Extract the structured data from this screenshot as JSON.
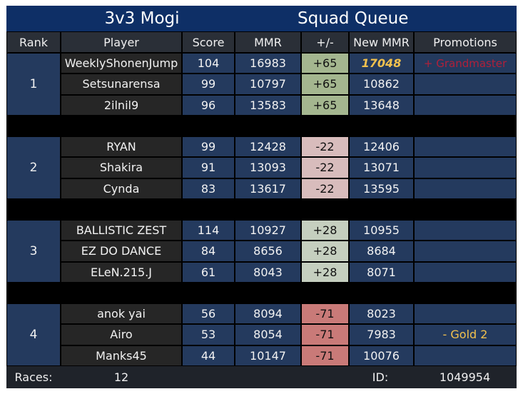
{
  "header": {
    "title_left": "3v3 Mogi",
    "title_right": "Squad Queue"
  },
  "columns": [
    "Rank",
    "Player",
    "Score",
    "MMR",
    "+/-",
    "New MMR",
    "Promotions"
  ],
  "colors": {
    "gain": "#a4b68f",
    "gain_light": "#c5cfbf",
    "loss_light": "#d8bcbc",
    "loss": "#c97a78"
  },
  "teams": [
    {
      "rank": "1",
      "delta_color": "#a4b68f",
      "players": [
        {
          "name": "WeeklyShonenJump",
          "score": "104",
          "mmr": "16983",
          "delta": "+65",
          "new_mmr": "17048",
          "promotion": "+ Grandmaster"
        },
        {
          "name": "Setsunarensa",
          "score": "99",
          "mmr": "10797",
          "delta": "+65",
          "new_mmr": "10862",
          "promotion": ""
        },
        {
          "name": "2ilnil9",
          "score": "96",
          "mmr": "13583",
          "delta": "+65",
          "new_mmr": "13648",
          "promotion": ""
        }
      ]
    },
    {
      "rank": "2",
      "delta_color": "#d8bcbc",
      "players": [
        {
          "name": "RYAN",
          "score": "99",
          "mmr": "12428",
          "delta": "-22",
          "new_mmr": "12406",
          "promotion": ""
        },
        {
          "name": "Shakira",
          "score": "91",
          "mmr": "13093",
          "delta": "-22",
          "new_mmr": "13071",
          "promotion": ""
        },
        {
          "name": "Cynda",
          "score": "83",
          "mmr": "13617",
          "delta": "-22",
          "new_mmr": "13595",
          "promotion": ""
        }
      ]
    },
    {
      "rank": "3",
      "delta_color": "#c5cfbf",
      "players": [
        {
          "name": "BALLISTIC ZEST",
          "score": "114",
          "mmr": "10927",
          "delta": "+28",
          "new_mmr": "10955",
          "promotion": ""
        },
        {
          "name": "EZ DO DANCE",
          "score": "84",
          "mmr": "8656",
          "delta": "+28",
          "new_mmr": "8684",
          "promotion": ""
        },
        {
          "name": "ELeN.215.J",
          "score": "61",
          "mmr": "8043",
          "delta": "+28",
          "new_mmr": "8071",
          "promotion": ""
        }
      ]
    },
    {
      "rank": "4",
      "delta_color": "#c97a78",
      "players": [
        {
          "name": "anok yai",
          "score": "56",
          "mmr": "8094",
          "delta": "-71",
          "new_mmr": "8023",
          "promotion": ""
        },
        {
          "name": "Airo",
          "score": "53",
          "mmr": "8054",
          "delta": "-71",
          "new_mmr": "7983",
          "promotion": "- Gold 2"
        },
        {
          "name": "Manks45",
          "score": "44",
          "mmr": "10147",
          "delta": "-71",
          "new_mmr": "10076",
          "promotion": ""
        }
      ]
    }
  ],
  "footer": {
    "races_label": "Races:",
    "races_value": "12",
    "id_label": "ID:",
    "id_value": "1049954"
  }
}
